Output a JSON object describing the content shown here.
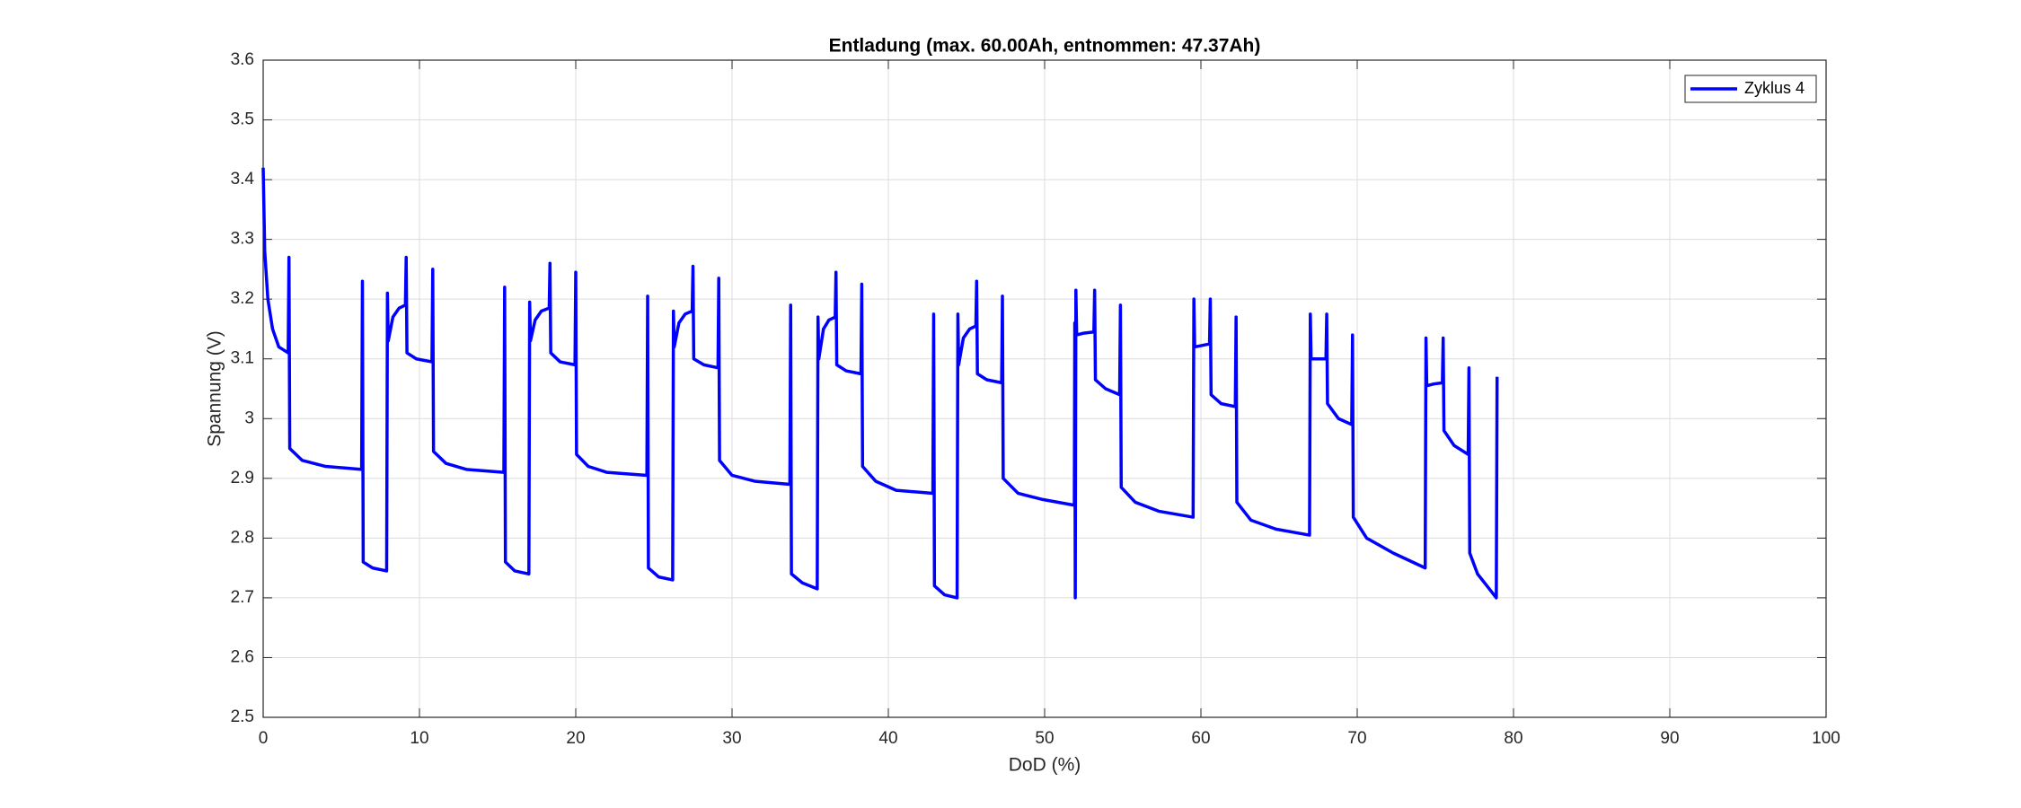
{
  "chart_data": {
    "type": "line",
    "title": "Entladung (max. 60.00Ah, entnommen: 47.37Ah)",
    "x_label": "DoD (%)",
    "y_label": "Spannung (V)",
    "xlim": [
      0,
      100
    ],
    "xticks": [
      0,
      10,
      20,
      30,
      40,
      50,
      60,
      70,
      80,
      90,
      100
    ],
    "ylim": [
      2.5,
      3.6
    ],
    "yticks": [
      2.5,
      2.6,
      2.7,
      2.8,
      2.9,
      3,
      3.1,
      3.2,
      3.3,
      3.4,
      3.5,
      3.6
    ],
    "grid": true,
    "legend": "upper right",
    "x": [
      0,
      0.1,
      0.3,
      0.6,
      1.0,
      1.6,
      1.65,
      1.7,
      2.5,
      4,
      6.3,
      6.35,
      6.4,
      7,
      7.9,
      7.95,
      8.0,
      8.3,
      8.7,
      9.1,
      9.15,
      9.2,
      9.8,
      10.8,
      10.85,
      10.9,
      11.7,
      13,
      15.4,
      15.45,
      15.5,
      16.1,
      17.0,
      17.05,
      17.1,
      17.4,
      17.8,
      18.3,
      18.35,
      18.4,
      19,
      19.95,
      20.0,
      20.05,
      20.8,
      22,
      24.55,
      24.6,
      24.65,
      25.3,
      26.2,
      26.25,
      26.3,
      26.6,
      27,
      27.45,
      27.5,
      27.55,
      28.2,
      29.1,
      29.15,
      29.2,
      30,
      31.5,
      33.7,
      33.75,
      33.8,
      34.5,
      35.45,
      35.5,
      35.55,
      35.85,
      36.2,
      36.6,
      36.65,
      36.7,
      37.3,
      38.25,
      38.3,
      38.35,
      39.2,
      40.5,
      42.85,
      42.9,
      42.95,
      43.6,
      44.4,
      44.45,
      44.5,
      44.8,
      45.2,
      45.6,
      45.65,
      45.7,
      46.3,
      47.25,
      47.3,
      47.35,
      48.3,
      49.8,
      51.9,
      51.93,
      51.96,
      52.0,
      52.05,
      52.5,
      53.15,
      53.2,
      53.25,
      53.9,
      54.8,
      54.85,
      54.9,
      55.8,
      57.3,
      59.5,
      59.55,
      59.6,
      60.0,
      60.55,
      60.6,
      60.65,
      61.3,
      62.2,
      62.25,
      62.3,
      63.2,
      64.8,
      66.95,
      67.0,
      67.05,
      67.5,
      68.0,
      68.05,
      68.1,
      68.8,
      69.65,
      69.7,
      69.75,
      70.6,
      72.3,
      74.35,
      74.4,
      74.45,
      74.9,
      75.45,
      75.5,
      75.55,
      76.2,
      77.1,
      77.15,
      77.2,
      77.7,
      78.3,
      78.9,
      78.95
    ],
    "series": [
      {
        "name": "Zyklus 4",
        "color": "#0000ff",
        "values": [
          3.42,
          3.28,
          3.2,
          3.15,
          3.12,
          3.11,
          3.27,
          2.95,
          2.93,
          2.92,
          2.915,
          3.23,
          2.76,
          2.75,
          2.745,
          3.21,
          3.13,
          3.17,
          3.185,
          3.19,
          3.27,
          3.11,
          3.1,
          3.095,
          3.25,
          2.945,
          2.925,
          2.915,
          2.91,
          3.22,
          2.76,
          2.745,
          2.74,
          3.195,
          3.13,
          3.165,
          3.18,
          3.185,
          3.26,
          3.11,
          3.095,
          3.09,
          3.245,
          2.94,
          2.92,
          2.91,
          2.905,
          3.205,
          2.75,
          2.735,
          2.73,
          3.18,
          3.12,
          3.16,
          3.175,
          3.18,
          3.255,
          3.1,
          3.09,
          3.085,
          3.235,
          2.93,
          2.905,
          2.895,
          2.89,
          3.19,
          2.74,
          2.725,
          2.715,
          3.17,
          3.1,
          3.15,
          3.165,
          3.17,
          3.245,
          3.09,
          3.08,
          3.075,
          3.225,
          2.92,
          2.895,
          2.88,
          2.875,
          3.175,
          2.72,
          2.705,
          2.7,
          3.175,
          3.09,
          3.135,
          3.15,
          3.155,
          3.23,
          3.075,
          3.065,
          3.06,
          3.205,
          2.9,
          2.875,
          2.865,
          2.855,
          3.16,
          2.7,
          3.215,
          3.14,
          3.143,
          3.145,
          3.215,
          3.065,
          3.05,
          3.04,
          3.19,
          2.885,
          2.86,
          2.845,
          2.835,
          3.2,
          3.12,
          3.122,
          3.125,
          3.2,
          3.04,
          3.025,
          3.02,
          3.17,
          2.86,
          2.83,
          2.815,
          2.805,
          3.175,
          3.1,
          3.1,
          3.1,
          3.175,
          3.025,
          3.0,
          2.99,
          3.14,
          2.835,
          2.8,
          2.775,
          2.75,
          3.135,
          3.055,
          3.058,
          3.06,
          3.135,
          2.98,
          2.955,
          2.94,
          3.085,
          2.775,
          2.74,
          2.72,
          2.7,
          3.07
        ]
      }
    ]
  }
}
